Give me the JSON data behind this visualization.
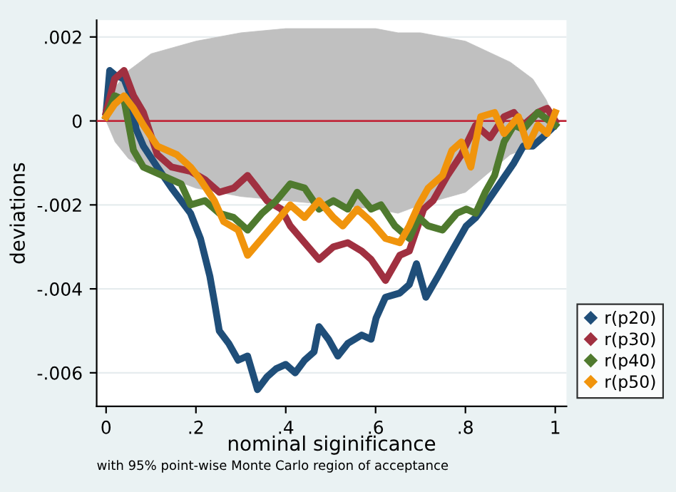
{
  "chart_data": {
    "type": "line",
    "xlabel": "nominal siginificance",
    "ylabel": "deviations",
    "annotations": [
      "with 95% point-wise Monte Carlo region of acceptance"
    ],
    "xlim": [
      -0.021,
      1.025
    ],
    "ylim": [
      -0.0068,
      0.0024
    ],
    "xticks": [
      0,
      {
        "value": 0.2,
        "label": ".2"
      },
      {
        "value": 0.4,
        "label": ".4"
      },
      {
        "value": 0.6,
        "label": ".6"
      },
      {
        "value": 0.8,
        "label": ".8"
      },
      1
    ],
    "yticks": [
      {
        "value": 0.002,
        "label": ".002"
      },
      0,
      {
        "value": -0.002,
        "label": "-.002"
      },
      {
        "value": -0.004,
        "label": "-.004"
      },
      {
        "value": -0.006,
        "label": "-.006"
      }
    ],
    "grid": "y",
    "legend": "bottom right",
    "ref_lines": [
      {
        "axis": "y",
        "value": 0,
        "color": "#c0283a"
      }
    ],
    "series": [
      {
        "type": "area",
        "color": "#c0c0c0",
        "x": [
          0,
          0.02,
          0.05,
          0.1,
          0.2,
          0.3,
          0.4,
          0.5,
          0.6,
          0.65,
          0.7,
          0.8,
          0.9,
          0.95,
          0.98,
          1
        ],
        "values": [
          0,
          0.0008,
          0.0012,
          0.0016,
          0.0019,
          0.0021,
          0.0022,
          0.0022,
          0.0022,
          0.0021,
          0.0021,
          0.0019,
          0.0014,
          0.001,
          0.0005,
          0
        ]
      },
      {
        "type": "area",
        "color": "#c0c0c0",
        "x": [
          0,
          0.02,
          0.05,
          0.1,
          0.2,
          0.3,
          0.4,
          0.5,
          0.6,
          0.65,
          0.7,
          0.8,
          0.9,
          0.95,
          0.98,
          1
        ],
        "values": [
          0,
          -0.0005,
          -0.0009,
          -0.0012,
          -0.0016,
          -0.0018,
          -0.0019,
          -0.002,
          -0.0021,
          -0.0022,
          -0.002,
          -0.0017,
          -0.0008,
          -0.0006,
          -0.0003,
          0
        ]
      },
      {
        "name": "r(p20)",
        "color": "#1f4e79",
        "x": [
          0,
          0.008,
          0.019,
          0.04,
          0.051,
          0.067,
          0.083,
          0.114,
          0.146,
          0.167,
          0.188,
          0.21,
          0.231,
          0.241,
          0.252,
          0.273,
          0.294,
          0.315,
          0.337,
          0.358,
          0.379,
          0.4,
          0.421,
          0.442,
          0.463,
          0.474,
          0.495,
          0.516,
          0.538,
          0.569,
          0.59,
          0.601,
          0.622,
          0.654,
          0.675,
          0.691,
          0.712,
          0.739,
          0.77,
          0.802,
          0.823,
          0.844,
          0.876,
          0.908,
          0.929,
          0.95,
          0.971,
          1
        ],
        "values": [
          0.0002,
          0.0012,
          0.0011,
          0.001,
          0.0007,
          -0.0002,
          -0.0006,
          -0.0011,
          -0.0016,
          -0.0019,
          -0.0022,
          -0.0028,
          -0.0037,
          -0.0043,
          -0.005,
          -0.0053,
          -0.0057,
          -0.0056,
          -0.0064,
          -0.0061,
          -0.0059,
          -0.0058,
          -0.006,
          -0.0057,
          -0.0055,
          -0.0049,
          -0.0052,
          -0.0056,
          -0.0053,
          -0.0051,
          -0.0052,
          -0.0047,
          -0.0042,
          -0.0041,
          -0.0039,
          -0.0034,
          -0.0042,
          -0.0037,
          -0.0031,
          -0.0025,
          -0.0023,
          -0.002,
          -0.0015,
          -0.001,
          -0.0006,
          -0.0006,
          -0.0004,
          -0.0001
        ]
      },
      {
        "name": "r(p30)",
        "color": "#a03040",
        "x": [
          0,
          0.019,
          0.04,
          0.061,
          0.083,
          0.114,
          0.146,
          0.188,
          0.22,
          0.252,
          0.284,
          0.315,
          0.337,
          0.358,
          0.39,
          0.41,
          0.442,
          0.474,
          0.506,
          0.538,
          0.569,
          0.59,
          0.622,
          0.654,
          0.675,
          0.707,
          0.728,
          0.76,
          0.791,
          0.823,
          0.855,
          0.886,
          0.908,
          0.929,
          0.961,
          0.982,
          1
        ],
        "values": [
          0.0002,
          0.001,
          0.0012,
          0.0006,
          0.0002,
          -0.0008,
          -0.0011,
          -0.0012,
          -0.0014,
          -0.0017,
          -0.0016,
          -0.0013,
          -0.0016,
          -0.0019,
          -0.0021,
          -0.0025,
          -0.0029,
          -0.0033,
          -0.003,
          -0.0029,
          -0.0031,
          -0.0033,
          -0.0038,
          -0.0032,
          -0.0031,
          -0.0021,
          -0.0019,
          -0.0013,
          -0.0008,
          -0.0001,
          -0.0004,
          0.0001,
          0.0002,
          -0.0001,
          0.0002,
          0.0003,
          0
        ]
      },
      {
        "name": "r(p40)",
        "color": "#4f7a2e",
        "x": [
          0,
          0.019,
          0.04,
          0.061,
          0.083,
          0.125,
          0.167,
          0.188,
          0.22,
          0.252,
          0.284,
          0.315,
          0.347,
          0.379,
          0.41,
          0.442,
          0.474,
          0.506,
          0.538,
          0.559,
          0.59,
          0.612,
          0.643,
          0.675,
          0.696,
          0.717,
          0.749,
          0.781,
          0.802,
          0.823,
          0.844,
          0.865,
          0.886,
          0.908,
          0.929,
          0.961,
          1
        ],
        "values": [
          0.0001,
          0.0006,
          0.0005,
          -0.0007,
          -0.0011,
          -0.0013,
          -0.0015,
          -0.002,
          -0.0019,
          -0.0022,
          -0.0023,
          -0.0026,
          -0.0022,
          -0.0019,
          -0.0015,
          -0.0016,
          -0.0021,
          -0.0019,
          -0.0021,
          -0.0017,
          -0.0021,
          -0.002,
          -0.0025,
          -0.0028,
          -0.0023,
          -0.0025,
          -0.0026,
          -0.0022,
          -0.0021,
          -0.0022,
          -0.0017,
          -0.0013,
          -0.0005,
          -0.0001,
          -0.0002,
          0.0002,
          -0.0001
        ]
      },
      {
        "name": "r(p50)",
        "color": "#f0940c",
        "x": [
          0,
          0.019,
          0.04,
          0.061,
          0.083,
          0.114,
          0.157,
          0.188,
          0.21,
          0.241,
          0.262,
          0.294,
          0.315,
          0.347,
          0.379,
          0.41,
          0.442,
          0.474,
          0.506,
          0.527,
          0.559,
          0.59,
          0.622,
          0.654,
          0.675,
          0.696,
          0.717,
          0.749,
          0.77,
          0.791,
          0.812,
          0.834,
          0.865,
          0.886,
          0.918,
          0.939,
          0.961,
          0.982,
          1
        ],
        "values": [
          0.0001,
          0.0004,
          0.0006,
          0.0003,
          -0.0001,
          -0.0006,
          -0.0008,
          -0.0011,
          -0.0014,
          -0.0019,
          -0.0024,
          -0.0026,
          -0.0032,
          -0.0028,
          -0.0024,
          -0.002,
          -0.0023,
          -0.0019,
          -0.0023,
          -0.0025,
          -0.0021,
          -0.0024,
          -0.0028,
          -0.0029,
          -0.0025,
          -0.002,
          -0.0016,
          -0.0013,
          -0.0007,
          -0.0005,
          -0.0011,
          0.0001,
          0.0002,
          -0.0003,
          0.0001,
          -0.0006,
          -0.0001,
          -0.0003,
          0.0002
        ]
      }
    ]
  }
}
